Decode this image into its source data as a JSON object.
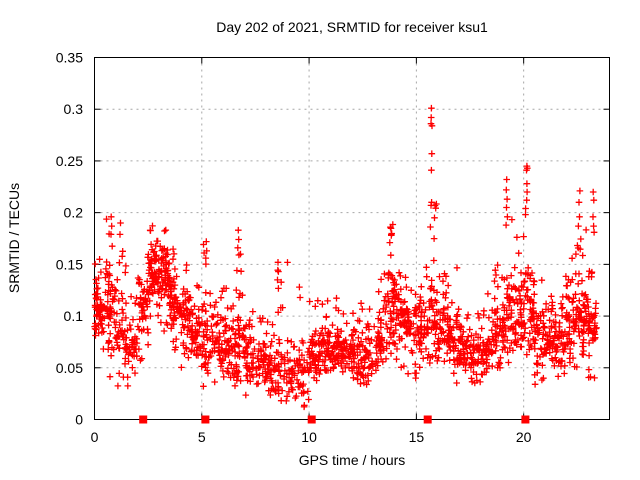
{
  "chart_data": {
    "type": "scatter",
    "title": "Day 202 of 2021, SRMTID for receiver ksu1",
    "xlabel": "GPS time / hours",
    "ylabel": "SRMTID / TECUs",
    "xlim": [
      0,
      24
    ],
    "ylim": [
      0,
      0.35
    ],
    "xticks": [
      0,
      5,
      10,
      15,
      20
    ],
    "yticks": [
      0,
      0.05,
      0.1,
      0.15,
      0.2,
      0.25,
      0.3,
      0.35
    ],
    "grid": true,
    "legend": false,
    "marker": "plus",
    "marker_color": "#ff0000",
    "axis_color": "#000000",
    "grid_color": "#a6a6a6",
    "seed": 1337,
    "series": [
      {
        "name": "SRMTID",
        "encoding": "density-bins [start_hour, width_hours, n_points, min, mode, max]",
        "bins": [
          [
            0.0,
            0.5,
            55,
            0.04,
            0.105,
            0.16
          ],
          [
            0.5,
            0.5,
            55,
            0.04,
            0.105,
            0.195
          ],
          [
            1.0,
            0.5,
            45,
            0.03,
            0.085,
            0.19
          ],
          [
            1.5,
            0.5,
            38,
            0.03,
            0.07,
            0.125
          ],
          [
            2.0,
            0.5,
            45,
            0.055,
            0.11,
            0.16
          ],
          [
            2.5,
            0.5,
            60,
            0.085,
            0.145,
            0.195
          ],
          [
            3.0,
            0.5,
            60,
            0.085,
            0.14,
            0.19
          ],
          [
            3.5,
            0.5,
            55,
            0.06,
            0.115,
            0.17
          ],
          [
            4.0,
            0.5,
            48,
            0.05,
            0.1,
            0.155
          ],
          [
            4.5,
            0.5,
            45,
            0.04,
            0.085,
            0.14
          ],
          [
            5.0,
            0.5,
            48,
            0.03,
            0.08,
            0.175
          ],
          [
            5.5,
            0.5,
            45,
            0.025,
            0.07,
            0.155
          ],
          [
            6.0,
            0.5,
            45,
            0.02,
            0.07,
            0.14
          ],
          [
            6.5,
            0.5,
            45,
            0.03,
            0.08,
            0.185
          ],
          [
            7.0,
            0.5,
            45,
            0.02,
            0.06,
            0.125
          ],
          [
            7.5,
            0.5,
            40,
            0.02,
            0.055,
            0.1
          ],
          [
            8.0,
            0.5,
            40,
            0.015,
            0.05,
            0.105
          ],
          [
            8.5,
            0.5,
            38,
            0.015,
            0.05,
            0.155
          ],
          [
            9.0,
            0.5,
            32,
            0.01,
            0.045,
            0.085
          ],
          [
            9.5,
            0.5,
            32,
            0.01,
            0.045,
            0.13
          ],
          [
            10.0,
            0.5,
            45,
            0.03,
            0.065,
            0.12
          ],
          [
            10.5,
            0.5,
            45,
            0.04,
            0.07,
            0.12
          ],
          [
            11.0,
            0.5,
            45,
            0.04,
            0.07,
            0.12
          ],
          [
            11.5,
            0.5,
            40,
            0.035,
            0.065,
            0.105
          ],
          [
            12.0,
            0.5,
            45,
            0.03,
            0.065,
            0.12
          ],
          [
            12.5,
            0.5,
            40,
            0.03,
            0.06,
            0.11
          ],
          [
            13.0,
            0.5,
            45,
            0.04,
            0.08,
            0.16
          ],
          [
            13.5,
            0.5,
            55,
            0.05,
            0.11,
            0.19
          ],
          [
            14.0,
            0.5,
            50,
            0.05,
            0.1,
            0.16
          ],
          [
            14.5,
            0.5,
            45,
            0.04,
            0.09,
            0.135
          ],
          [
            15.0,
            0.5,
            45,
            0.04,
            0.09,
            0.15
          ],
          [
            15.5,
            0.5,
            50,
            0.05,
            0.1,
            0.21
          ],
          [
            16.0,
            0.5,
            45,
            0.04,
            0.09,
            0.16
          ],
          [
            16.5,
            0.5,
            45,
            0.035,
            0.08,
            0.155
          ],
          [
            17.0,
            0.5,
            42,
            0.03,
            0.07,
            0.115
          ],
          [
            17.5,
            0.5,
            40,
            0.03,
            0.065,
            0.105
          ],
          [
            18.0,
            0.5,
            42,
            0.035,
            0.07,
            0.125
          ],
          [
            18.5,
            0.5,
            45,
            0.04,
            0.08,
            0.155
          ],
          [
            19.0,
            0.5,
            50,
            0.05,
            0.1,
            0.195
          ],
          [
            19.5,
            0.5,
            50,
            0.05,
            0.1,
            0.18
          ],
          [
            20.0,
            0.5,
            55,
            0.05,
            0.11,
            0.215
          ],
          [
            20.5,
            0.5,
            45,
            0.03,
            0.08,
            0.14
          ],
          [
            21.0,
            0.5,
            45,
            0.04,
            0.075,
            0.125
          ],
          [
            21.5,
            0.5,
            45,
            0.04,
            0.08,
            0.14
          ],
          [
            22.0,
            0.5,
            50,
            0.05,
            0.09,
            0.165
          ],
          [
            22.5,
            0.5,
            50,
            0.05,
            0.095,
            0.185
          ],
          [
            23.0,
            0.4,
            45,
            0.04,
            0.09,
            0.155
          ]
        ]
      }
    ],
    "outliers": [
      [
        15.7,
        0.301
      ],
      [
        15.69,
        0.292
      ],
      [
        15.68,
        0.286
      ],
      [
        15.73,
        0.284
      ],
      [
        15.72,
        0.257
      ],
      [
        15.7,
        0.241
      ],
      [
        15.71,
        0.21
      ],
      [
        15.68,
        0.207
      ],
      [
        20.15,
        0.245
      ],
      [
        20.17,
        0.243
      ],
      [
        20.13,
        0.241
      ],
      [
        20.15,
        0.228
      ],
      [
        20.16,
        0.22
      ],
      [
        20.14,
        0.212
      ],
      [
        19.21,
        0.232
      ],
      [
        19.19,
        0.222
      ],
      [
        19.23,
        0.213
      ],
      [
        19.2,
        0.205
      ],
      [
        19.24,
        0.196
      ],
      [
        19.18,
        0.188
      ],
      [
        22.62,
        0.221
      ],
      [
        22.58,
        0.21
      ],
      [
        22.6,
        0.196
      ],
      [
        22.55,
        0.187
      ],
      [
        23.24,
        0.22
      ],
      [
        23.27,
        0.212
      ],
      [
        23.23,
        0.196
      ],
      [
        23.26,
        0.187
      ],
      [
        23.28,
        0.181
      ],
      [
        0.78,
        0.196
      ],
      [
        0.8,
        0.187
      ],
      [
        0.77,
        0.179
      ],
      [
        1.21,
        0.19
      ],
      [
        1.19,
        0.179
      ],
      [
        6.7,
        0.183
      ],
      [
        6.72,
        0.174
      ],
      [
        6.68,
        0.166
      ],
      [
        6.73,
        0.159
      ],
      [
        5.21,
        0.172
      ],
      [
        5.23,
        0.163
      ],
      [
        13.79,
        0.186
      ],
      [
        13.83,
        0.178
      ],
      [
        13.76,
        0.171
      ],
      [
        8.55,
        0.152
      ],
      [
        8.57,
        0.143
      ],
      [
        8.53,
        0.135
      ],
      [
        9.55,
        0.128
      ],
      [
        9.58,
        0.118
      ]
    ],
    "zero_markers": {
      "marker": "filled-square",
      "y": 0,
      "x": [
        2.27,
        5.17,
        10.12,
        15.53,
        20.08
      ]
    }
  }
}
